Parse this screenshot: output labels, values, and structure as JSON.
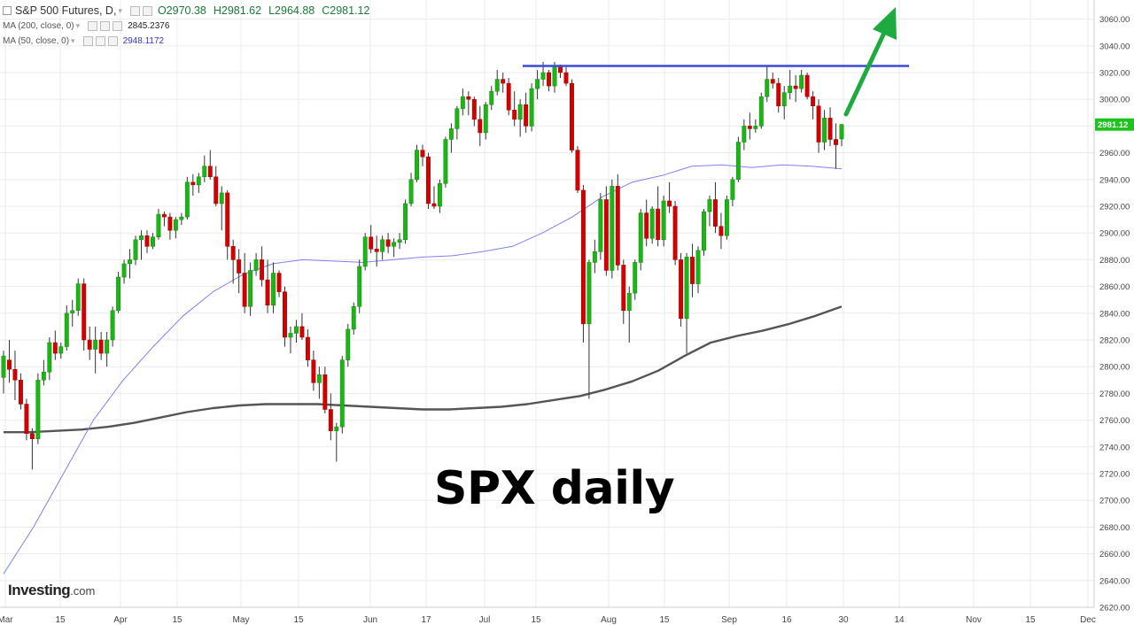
{
  "legend": {
    "symbol_title": "S&P 500 Futures, D,",
    "open": "O2970.38",
    "high": "H2981.62",
    "low": "L2964.88",
    "close": "C2981.12",
    "ma200_label": "MA (200, close, 0)",
    "ma200_value": "2845.2376",
    "ma50_label": "MA (50, close, 0)",
    "ma50_value": "2948.1172"
  },
  "overlay_text": "SPX daily",
  "brand": {
    "name": "Investing",
    "domain": ".com"
  },
  "price_tag": "2981.12",
  "colors": {
    "up": "#1db515",
    "down": "#d40000",
    "ma50": "#8080ee",
    "ma200": "#555555",
    "resistance": "#3b4bd6",
    "arrow": "#1daa3e",
    "tag": "#1fc21f"
  },
  "chart_data": {
    "type": "candlestick",
    "title": "S&P 500 Futures, D,",
    "y_range": [
      2620,
      3070
    ],
    "y_ticks": [
      "3060.00",
      "3040.00",
      "3020.00",
      "3000.00",
      "2980.00",
      "2960.00",
      "2940.00",
      "2920.00",
      "2900.00",
      "2880.00",
      "2860.00",
      "2840.00",
      "2820.00",
      "2800.00",
      "2780.00",
      "2760.00",
      "2740.00",
      "2720.00",
      "2700.00",
      "2680.00",
      "2660.00",
      "2640.00",
      "2620.00"
    ],
    "x_ticks": [
      "Mar",
      "15",
      "Apr",
      "15",
      "May",
      "15",
      "Jun",
      "17",
      "Jul",
      "15",
      "Aug",
      "15",
      "Sep",
      "16",
      "30",
      "14",
      "Nov",
      "15",
      "Dec"
    ],
    "candles": [
      {
        "o": 2792,
        "h": 2812,
        "l": 2780,
        "c": 2808
      },
      {
        "o": 2805,
        "h": 2820,
        "l": 2788,
        "c": 2798
      },
      {
        "o": 2798,
        "h": 2812,
        "l": 2775,
        "c": 2790
      },
      {
        "o": 2790,
        "h": 2795,
        "l": 2768,
        "c": 2772
      },
      {
        "o": 2772,
        "h": 2776,
        "l": 2745,
        "c": 2750
      },
      {
        "o": 2750,
        "h": 2754,
        "l": 2723,
        "c": 2746
      },
      {
        "o": 2746,
        "h": 2795,
        "l": 2742,
        "c": 2790
      },
      {
        "o": 2790,
        "h": 2805,
        "l": 2786,
        "c": 2796
      },
      {
        "o": 2796,
        "h": 2822,
        "l": 2790,
        "c": 2818
      },
      {
        "o": 2818,
        "h": 2827,
        "l": 2805,
        "c": 2810
      },
      {
        "o": 2810,
        "h": 2818,
        "l": 2806,
        "c": 2815
      },
      {
        "o": 2815,
        "h": 2846,
        "l": 2812,
        "c": 2840
      },
      {
        "o": 2840,
        "h": 2850,
        "l": 2830,
        "c": 2842
      },
      {
        "o": 2842,
        "h": 2866,
        "l": 2838,
        "c": 2862
      },
      {
        "o": 2862,
        "h": 2866,
        "l": 2812,
        "c": 2820
      },
      {
        "o": 2820,
        "h": 2830,
        "l": 2805,
        "c": 2813
      },
      {
        "o": 2813,
        "h": 2830,
        "l": 2795,
        "c": 2820
      },
      {
        "o": 2820,
        "h": 2826,
        "l": 2805,
        "c": 2810
      },
      {
        "o": 2810,
        "h": 2826,
        "l": 2800,
        "c": 2820
      },
      {
        "o": 2820,
        "h": 2845,
        "l": 2815,
        "c": 2842
      },
      {
        "o": 2842,
        "h": 2871,
        "l": 2840,
        "c": 2867
      },
      {
        "o": 2867,
        "h": 2880,
        "l": 2862,
        "c": 2877
      },
      {
        "o": 2877,
        "h": 2888,
        "l": 2866,
        "c": 2880
      },
      {
        "o": 2880,
        "h": 2898,
        "l": 2876,
        "c": 2895
      },
      {
        "o": 2895,
        "h": 2902,
        "l": 2880,
        "c": 2898
      },
      {
        "o": 2898,
        "h": 2902,
        "l": 2885,
        "c": 2890
      },
      {
        "o": 2890,
        "h": 2900,
        "l": 2888,
        "c": 2897
      },
      {
        "o": 2897,
        "h": 2918,
        "l": 2895,
        "c": 2914
      },
      {
        "o": 2914,
        "h": 2916,
        "l": 2905,
        "c": 2912
      },
      {
        "o": 2912,
        "h": 2915,
        "l": 2895,
        "c": 2902
      },
      {
        "o": 2902,
        "h": 2912,
        "l": 2896,
        "c": 2910
      },
      {
        "o": 2910,
        "h": 2915,
        "l": 2906,
        "c": 2912
      },
      {
        "o": 2912,
        "h": 2942,
        "l": 2910,
        "c": 2938
      },
      {
        "o": 2938,
        "h": 2944,
        "l": 2928,
        "c": 2936
      },
      {
        "o": 2936,
        "h": 2945,
        "l": 2930,
        "c": 2942
      },
      {
        "o": 2942,
        "h": 2958,
        "l": 2938,
        "c": 2950
      },
      {
        "o": 2950,
        "h": 2962,
        "l": 2940,
        "c": 2942
      },
      {
        "o": 2942,
        "h": 2950,
        "l": 2920,
        "c": 2922
      },
      {
        "o": 2922,
        "h": 2935,
        "l": 2902,
        "c": 2930
      },
      {
        "o": 2930,
        "h": 2932,
        "l": 2880,
        "c": 2890
      },
      {
        "o": 2890,
        "h": 2895,
        "l": 2862,
        "c": 2880
      },
      {
        "o": 2880,
        "h": 2888,
        "l": 2855,
        "c": 2870
      },
      {
        "o": 2870,
        "h": 2885,
        "l": 2840,
        "c": 2845
      },
      {
        "o": 2845,
        "h": 2878,
        "l": 2838,
        "c": 2872
      },
      {
        "o": 2872,
        "h": 2885,
        "l": 2868,
        "c": 2880
      },
      {
        "o": 2880,
        "h": 2890,
        "l": 2860,
        "c": 2865
      },
      {
        "o": 2865,
        "h": 2880,
        "l": 2840,
        "c": 2846
      },
      {
        "o": 2846,
        "h": 2878,
        "l": 2840,
        "c": 2870
      },
      {
        "o": 2870,
        "h": 2872,
        "l": 2852,
        "c": 2856
      },
      {
        "o": 2856,
        "h": 2860,
        "l": 2815,
        "c": 2822
      },
      {
        "o": 2822,
        "h": 2830,
        "l": 2810,
        "c": 2825
      },
      {
        "o": 2825,
        "h": 2835,
        "l": 2818,
        "c": 2830
      },
      {
        "o": 2830,
        "h": 2840,
        "l": 2820,
        "c": 2822
      },
      {
        "o": 2822,
        "h": 2828,
        "l": 2800,
        "c": 2805
      },
      {
        "o": 2805,
        "h": 2812,
        "l": 2782,
        "c": 2788
      },
      {
        "o": 2788,
        "h": 2800,
        "l": 2776,
        "c": 2794
      },
      {
        "o": 2794,
        "h": 2800,
        "l": 2765,
        "c": 2768
      },
      {
        "o": 2768,
        "h": 2780,
        "l": 2745,
        "c": 2752
      },
      {
        "o": 2752,
        "h": 2758,
        "l": 2729,
        "c": 2755
      },
      {
        "o": 2755,
        "h": 2808,
        "l": 2750,
        "c": 2805
      },
      {
        "o": 2805,
        "h": 2832,
        "l": 2800,
        "c": 2828
      },
      {
        "o": 2828,
        "h": 2848,
        "l": 2824,
        "c": 2845
      },
      {
        "o": 2845,
        "h": 2880,
        "l": 2840,
        "c": 2875
      },
      {
        "o": 2875,
        "h": 2900,
        "l": 2872,
        "c": 2897
      },
      {
        "o": 2897,
        "h": 2906,
        "l": 2885,
        "c": 2888
      },
      {
        "o": 2888,
        "h": 2898,
        "l": 2875,
        "c": 2886
      },
      {
        "o": 2886,
        "h": 2898,
        "l": 2880,
        "c": 2895
      },
      {
        "o": 2895,
        "h": 2900,
        "l": 2885,
        "c": 2890
      },
      {
        "o": 2890,
        "h": 2896,
        "l": 2882,
        "c": 2893
      },
      {
        "o": 2893,
        "h": 2900,
        "l": 2888,
        "c": 2895
      },
      {
        "o": 2895,
        "h": 2925,
        "l": 2892,
        "c": 2922
      },
      {
        "o": 2922,
        "h": 2945,
        "l": 2920,
        "c": 2940
      },
      {
        "o": 2940,
        "h": 2966,
        "l": 2938,
        "c": 2962
      },
      {
        "o": 2962,
        "h": 2966,
        "l": 2950,
        "c": 2957
      },
      {
        "o": 2957,
        "h": 2960,
        "l": 2918,
        "c": 2922
      },
      {
        "o": 2922,
        "h": 2935,
        "l": 2918,
        "c": 2920
      },
      {
        "o": 2920,
        "h": 2940,
        "l": 2915,
        "c": 2937
      },
      {
        "o": 2937,
        "h": 2972,
        "l": 2934,
        "c": 2970
      },
      {
        "o": 2970,
        "h": 2982,
        "l": 2960,
        "c": 2978
      },
      {
        "o": 2978,
        "h": 2995,
        "l": 2970,
        "c": 2993
      },
      {
        "o": 2993,
        "h": 3008,
        "l": 2988,
        "c": 3002
      },
      {
        "o": 3002,
        "h": 3006,
        "l": 2988,
        "c": 3000
      },
      {
        "o": 3000,
        "h": 3002,
        "l": 2980,
        "c": 2985
      },
      {
        "o": 2985,
        "h": 2995,
        "l": 2965,
        "c": 2975
      },
      {
        "o": 2975,
        "h": 2998,
        "l": 2970,
        "c": 2996
      },
      {
        "o": 2996,
        "h": 3010,
        "l": 2992,
        "c": 3006
      },
      {
        "o": 3006,
        "h": 3022,
        "l": 3003,
        "c": 3015
      },
      {
        "o": 3015,
        "h": 3020,
        "l": 3005,
        "c": 3012
      },
      {
        "o": 3012,
        "h": 3016,
        "l": 2988,
        "c": 2992
      },
      {
        "o": 2992,
        "h": 3006,
        "l": 2980,
        "c": 2985
      },
      {
        "o": 2985,
        "h": 3000,
        "l": 2972,
        "c": 2996
      },
      {
        "o": 2996,
        "h": 3005,
        "l": 2975,
        "c": 2980
      },
      {
        "o": 2980,
        "h": 3012,
        "l": 2976,
        "c": 3008
      },
      {
        "o": 3008,
        "h": 3022,
        "l": 3000,
        "c": 3015
      },
      {
        "o": 3015,
        "h": 3028,
        "l": 3010,
        "c": 3020
      },
      {
        "o": 3020,
        "h": 3022,
        "l": 3006,
        "c": 3010
      },
      {
        "o": 3010,
        "h": 3028,
        "l": 3005,
        "c": 3025
      },
      {
        "o": 3025,
        "h": 3026,
        "l": 3016,
        "c": 3020
      },
      {
        "o": 3020,
        "h": 3024,
        "l": 3010,
        "c": 3012
      },
      {
        "o": 3012,
        "h": 3015,
        "l": 2960,
        "c": 2962
      },
      {
        "o": 2962,
        "h": 2965,
        "l": 2930,
        "c": 2932
      },
      {
        "o": 2932,
        "h": 2936,
        "l": 2818,
        "c": 2832
      },
      {
        "o": 2832,
        "h": 2880,
        "l": 2776,
        "c": 2878
      },
      {
        "o": 2878,
        "h": 2895,
        "l": 2870,
        "c": 2886
      },
      {
        "o": 2886,
        "h": 2930,
        "l": 2880,
        "c": 2925
      },
      {
        "o": 2925,
        "h": 2935,
        "l": 2868,
        "c": 2872
      },
      {
        "o": 2872,
        "h": 2940,
        "l": 2866,
        "c": 2935
      },
      {
        "o": 2935,
        "h": 2944,
        "l": 2872,
        "c": 2876
      },
      {
        "o": 2876,
        "h": 2880,
        "l": 2832,
        "c": 2842
      },
      {
        "o": 2842,
        "h": 2860,
        "l": 2818,
        "c": 2855
      },
      {
        "o": 2855,
        "h": 2880,
        "l": 2850,
        "c": 2878
      },
      {
        "o": 2878,
        "h": 2918,
        "l": 2872,
        "c": 2915
      },
      {
        "o": 2915,
        "h": 2925,
        "l": 2890,
        "c": 2896
      },
      {
        "o": 2896,
        "h": 2920,
        "l": 2892,
        "c": 2918
      },
      {
        "o": 2918,
        "h": 2935,
        "l": 2890,
        "c": 2895
      },
      {
        "o": 2895,
        "h": 2928,
        "l": 2890,
        "c": 2924
      },
      {
        "o": 2924,
        "h": 2938,
        "l": 2915,
        "c": 2920
      },
      {
        "o": 2920,
        "h": 2924,
        "l": 2876,
        "c": 2880
      },
      {
        "o": 2880,
        "h": 2885,
        "l": 2830,
        "c": 2836
      },
      {
        "o": 2836,
        "h": 2885,
        "l": 2810,
        "c": 2882
      },
      {
        "o": 2882,
        "h": 2892,
        "l": 2852,
        "c": 2862
      },
      {
        "o": 2862,
        "h": 2890,
        "l": 2855,
        "c": 2887
      },
      {
        "o": 2887,
        "h": 2918,
        "l": 2883,
        "c": 2916
      },
      {
        "o": 2916,
        "h": 2928,
        "l": 2905,
        "c": 2925
      },
      {
        "o": 2925,
        "h": 2938,
        "l": 2900,
        "c": 2905
      },
      {
        "o": 2905,
        "h": 2915,
        "l": 2888,
        "c": 2898
      },
      {
        "o": 2898,
        "h": 2928,
        "l": 2895,
        "c": 2925
      },
      {
        "o": 2925,
        "h": 2942,
        "l": 2920,
        "c": 2940
      },
      {
        "o": 2940,
        "h": 2972,
        "l": 2938,
        "c": 2968
      },
      {
        "o": 2968,
        "h": 2985,
        "l": 2962,
        "c": 2980
      },
      {
        "o": 2980,
        "h": 2990,
        "l": 2970,
        "c": 2978
      },
      {
        "o": 2978,
        "h": 2985,
        "l": 2975,
        "c": 2980
      },
      {
        "o": 2980,
        "h": 3005,
        "l": 2978,
        "c": 3002
      },
      {
        "o": 3002,
        "h": 3025,
        "l": 2998,
        "c": 3015
      },
      {
        "o": 3015,
        "h": 3020,
        "l": 3008,
        "c": 3012
      },
      {
        "o": 3012,
        "h": 3016,
        "l": 2990,
        "c": 2995
      },
      {
        "o": 2995,
        "h": 3010,
        "l": 2985,
        "c": 3005
      },
      {
        "o": 3005,
        "h": 3022,
        "l": 3000,
        "c": 3010
      },
      {
        "o": 3010,
        "h": 3018,
        "l": 2998,
        "c": 3008
      },
      {
        "o": 3008,
        "h": 3022,
        "l": 3005,
        "c": 3018
      },
      {
        "o": 3018,
        "h": 3020,
        "l": 3000,
        "c": 3002
      },
      {
        "o": 3002,
        "h": 3006,
        "l": 2985,
        "c": 2995
      },
      {
        "o": 2995,
        "h": 3000,
        "l": 2960,
        "c": 2968
      },
      {
        "o": 2968,
        "h": 2992,
        "l": 2962,
        "c": 2986
      },
      {
        "o": 2986,
        "h": 2994,
        "l": 2965,
        "c": 2970
      },
      {
        "o": 2970,
        "h": 2982,
        "l": 2948,
        "c": 2966
      },
      {
        "o": 2970.38,
        "h": 2981.62,
        "l": 2964.88,
        "c": 2981.12
      }
    ],
    "ma200": [
      2751,
      2751,
      2752,
      2753,
      2755,
      2758,
      2762,
      2766,
      2769,
      2771,
      2772,
      2772,
      2772,
      2771,
      2770,
      2769,
      2768,
      2768,
      2769,
      2770,
      2772,
      2775,
      2778,
      2783,
      2789,
      2797,
      2808,
      2818,
      2823,
      2827,
      2832,
      2838,
      2845
    ],
    "ma50": [
      2645,
      2680,
      2720,
      2760,
      2790,
      2815,
      2838,
      2856,
      2869,
      2877,
      2880,
      2879,
      2878,
      2880,
      2882,
      2883,
      2886,
      2890,
      2900,
      2912,
      2927,
      2938,
      2943,
      2950,
      2951,
      2949,
      2951,
      2950,
      2948
    ],
    "resistance_level": 3025
  }
}
